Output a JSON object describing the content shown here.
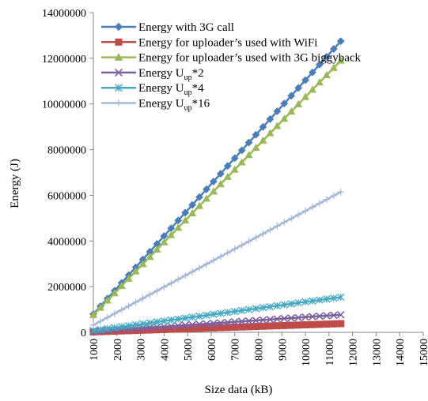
{
  "chart_data": {
    "type": "line",
    "xlabel": "Size data (kB)",
    "ylabel": "Energy (J)",
    "xlim": [
      1000,
      15000
    ],
    "ylim": [
      0,
      14000000
    ],
    "x_ticks": [
      "1000",
      "2000",
      "3000",
      "4000",
      "5000",
      "6000",
      "7000",
      "8000",
      "9000",
      "10000",
      "11000",
      "12000",
      "13000",
      "14000",
      "15000"
    ],
    "y_ticks": [
      "0",
      "2000000",
      "4000000",
      "6000000",
      "8000000",
      "10000000",
      "12000000",
      "14000000"
    ],
    "grid": "none",
    "legend_position": "top-left",
    "x_start": 1000,
    "x_step": 300,
    "n_points": 36,
    "series": [
      {
        "name": "Energy with 3G call",
        "legend": {
          "prefix": "Energy with 3G call",
          "sub": "",
          "suffix": ""
        },
        "color": "#4a7ebb",
        "marker": "diamond",
        "y_start": 800000,
        "y_end": 12750000
      },
      {
        "name": "Energy for uploader’s used with WiFi",
        "legend": {
          "prefix": "Energy for uploader’s used with WiFi",
          "sub": "",
          "suffix": ""
        },
        "color": "#be4b48",
        "marker": "square",
        "y_start": 20000,
        "y_end": 380000
      },
      {
        "name": "Energy for uploader’s used with 3G biggyback",
        "legend": {
          "prefix": "Energy for uploader’s used with 3G biggyback",
          "sub": "",
          "suffix": ""
        },
        "color": "#98b954",
        "marker": "triangle",
        "y_start": 760000,
        "y_end": 11900000
      },
      {
        "name": "Energy Uup*2",
        "legend": {
          "prefix": "Energy U",
          "sub": "up",
          "suffix": "*2"
        },
        "color": "#7d60a0",
        "marker": "x",
        "y_start": 40000,
        "y_end": 770000
      },
      {
        "name": "Energy Uup*4",
        "legend": {
          "prefix": "Energy U",
          "sub": "up",
          "suffix": "*4"
        },
        "color": "#46aac5",
        "marker": "asterisk",
        "y_start": 80000,
        "y_end": 1540000
      },
      {
        "name": "Energy Uup*16",
        "legend": {
          "prefix": "Energy U",
          "sub": "up",
          "suffix": "*16"
        },
        "color": "#a5b6d8",
        "marker": "plus",
        "y_start": 320000,
        "y_end": 6150000
      }
    ]
  }
}
